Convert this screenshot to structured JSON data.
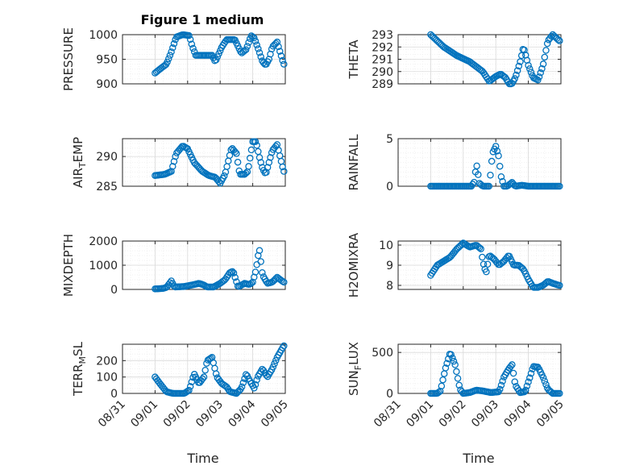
{
  "figure": {
    "title": "Figure 1 medium"
  },
  "colors": {
    "marker": "#0072BD",
    "axis": "#262626",
    "grid": "#e0e0e0"
  },
  "xaxis": {
    "label": "Time",
    "ticks": [
      "08/31",
      "09/01",
      "09/02",
      "09/03",
      "09/04",
      "09/05"
    ],
    "tick_values": [
      0,
      1,
      2,
      3,
      4,
      5
    ],
    "range": [
      0,
      5
    ],
    "data_range": [
      1.0,
      4.96
    ]
  },
  "chart_data": [
    {
      "type": "scatter",
      "ylabel": "PRESSURE",
      "ylim": [
        900,
        1000
      ],
      "yticks": [
        900,
        950,
        1000
      ],
      "knots": [
        [
          1.0,
          922
        ],
        [
          1.15,
          930
        ],
        [
          1.35,
          940
        ],
        [
          1.5,
          965
        ],
        [
          1.65,
          995
        ],
        [
          1.85,
          1000
        ],
        [
          2.05,
          998
        ],
        [
          2.15,
          975
        ],
        [
          2.25,
          958
        ],
        [
          2.5,
          958
        ],
        [
          2.75,
          958
        ],
        [
          2.85,
          945
        ],
        [
          3.05,
          975
        ],
        [
          3.2,
          990
        ],
        [
          3.45,
          990
        ],
        [
          3.65,
          962
        ],
        [
          3.8,
          970
        ],
        [
          3.95,
          998
        ],
        [
          4.05,
          993
        ],
        [
          4.2,
          965
        ],
        [
          4.3,
          945
        ],
        [
          4.4,
          938
        ],
        [
          4.5,
          950
        ],
        [
          4.6,
          975
        ],
        [
          4.75,
          985
        ],
        [
          4.95,
          940
        ]
      ]
    },
    {
      "type": "scatter",
      "ylabel": "THETA",
      "ylim": [
        289,
        293
      ],
      "yticks": [
        289,
        290,
        291,
        292,
        293
      ],
      "knots": [
        [
          1.0,
          293.0
        ],
        [
          1.4,
          292.0
        ],
        [
          1.8,
          291.3
        ],
        [
          2.2,
          290.8
        ],
        [
          2.6,
          290.0
        ],
        [
          2.8,
          289.2
        ],
        [
          3.0,
          289.6
        ],
        [
          3.15,
          289.8
        ],
        [
          3.3,
          289.5
        ],
        [
          3.45,
          288.8
        ],
        [
          3.6,
          289.5
        ],
        [
          3.75,
          290.8
        ],
        [
          3.85,
          292.0
        ],
        [
          4.0,
          290.5
        ],
        [
          4.15,
          289.5
        ],
        [
          4.3,
          289.3
        ],
        [
          4.45,
          290.5
        ],
        [
          4.6,
          292.5
        ],
        [
          4.75,
          293.0
        ],
        [
          4.95,
          292.5
        ]
      ]
    },
    {
      "type": "scatter",
      "ylabel": "AIR_TEMP",
      "ylabel_main": "AIR",
      "ylabel_sub": "T",
      "ylabel_rest": "EMP",
      "ylim": [
        285,
        293
      ],
      "yticks": [
        285,
        290
      ],
      "knots": [
        [
          1.0,
          286.8
        ],
        [
          1.3,
          287.0
        ],
        [
          1.5,
          287.5
        ],
        [
          1.65,
          290.5
        ],
        [
          1.85,
          291.8
        ],
        [
          2.0,
          291.3
        ],
        [
          2.2,
          289.0
        ],
        [
          2.45,
          287.5
        ],
        [
          2.65,
          286.8
        ],
        [
          2.85,
          286.5
        ],
        [
          3.0,
          285.5
        ],
        [
          3.15,
          287.0
        ],
        [
          3.35,
          291.5
        ],
        [
          3.5,
          290.5
        ],
        [
          3.6,
          287.0
        ],
        [
          3.75,
          287.0
        ],
        [
          3.85,
          287.5
        ],
        [
          4.0,
          292.5
        ],
        [
          4.1,
          292.5
        ],
        [
          4.2,
          290.0
        ],
        [
          4.3,
          288.0
        ],
        [
          4.4,
          287.0
        ],
        [
          4.5,
          289.0
        ],
        [
          4.6,
          291.0
        ],
        [
          4.75,
          292.0
        ],
        [
          4.95,
          287.5
        ]
      ]
    },
    {
      "type": "scatter",
      "ylabel": "RAINFALL",
      "ylim": [
        0,
        5
      ],
      "yticks": [
        0,
        5
      ],
      "knots": [
        [
          1.0,
          0
        ],
        [
          2.25,
          0
        ],
        [
          2.35,
          0.5
        ],
        [
          2.4,
          2.5
        ],
        [
          2.5,
          0.3
        ],
        [
          2.6,
          0
        ],
        [
          2.8,
          0
        ],
        [
          2.9,
          3.5
        ],
        [
          3.0,
          4.2
        ],
        [
          3.1,
          3.0
        ],
        [
          3.15,
          1.2
        ],
        [
          3.25,
          0
        ],
        [
          3.35,
          0
        ],
        [
          3.5,
          0.4
        ],
        [
          3.6,
          0
        ],
        [
          3.8,
          0.1
        ],
        [
          4.0,
          0
        ],
        [
          4.96,
          0
        ]
      ]
    },
    {
      "type": "scatter",
      "ylabel": "MIXDEPTH",
      "ylim": [
        0,
        2000
      ],
      "yticks": [
        0,
        1000,
        2000
      ],
      "knots": [
        [
          1.0,
          20
        ],
        [
          1.25,
          40
        ],
        [
          1.35,
          80
        ],
        [
          1.5,
          350
        ],
        [
          1.6,
          100
        ],
        [
          1.9,
          120
        ],
        [
          2.2,
          200
        ],
        [
          2.35,
          250
        ],
        [
          2.5,
          180
        ],
        [
          2.6,
          100
        ],
        [
          2.8,
          100
        ],
        [
          3.0,
          250
        ],
        [
          3.15,
          400
        ],
        [
          3.3,
          700
        ],
        [
          3.4,
          750
        ],
        [
          3.55,
          100
        ],
        [
          3.75,
          250
        ],
        [
          3.9,
          200
        ],
        [
          4.0,
          300
        ],
        [
          4.1,
          800
        ],
        [
          4.2,
          1700
        ],
        [
          4.3,
          600
        ],
        [
          4.45,
          250
        ],
        [
          4.6,
          300
        ],
        [
          4.75,
          500
        ],
        [
          4.95,
          300
        ]
      ]
    },
    {
      "type": "scatter",
      "ylabel": "H2OMIXRA",
      "ylim": [
        7.8,
        10.2
      ],
      "yticks": [
        8,
        9,
        10
      ],
      "knots": [
        [
          1.0,
          8.5
        ],
        [
          1.2,
          9.0
        ],
        [
          1.4,
          9.2
        ],
        [
          1.6,
          9.4
        ],
        [
          1.8,
          9.8
        ],
        [
          2.0,
          10.1
        ],
        [
          2.2,
          9.9
        ],
        [
          2.4,
          10.0
        ],
        [
          2.55,
          9.8
        ],
        [
          2.6,
          9.2
        ],
        [
          2.7,
          8.6
        ],
        [
          2.8,
          9.5
        ],
        [
          2.95,
          9.3
        ],
        [
          3.1,
          9.0
        ],
        [
          3.25,
          9.2
        ],
        [
          3.4,
          9.5
        ],
        [
          3.55,
          9.0
        ],
        [
          3.7,
          9.0
        ],
        [
          3.85,
          8.8
        ],
        [
          4.0,
          8.3
        ],
        [
          4.15,
          7.9
        ],
        [
          4.3,
          7.9
        ],
        [
          4.45,
          8.0
        ],
        [
          4.6,
          8.2
        ],
        [
          4.75,
          8.1
        ],
        [
          4.95,
          8.0
        ]
      ]
    },
    {
      "type": "scatter",
      "ylabel": "TERR_MSL",
      "ylabel_main": "TERR",
      "ylabel_sub": "M",
      "ylabel_rest": "SL",
      "ylim": [
        0,
        300
      ],
      "yticks": [
        0,
        100,
        200
      ],
      "knots": [
        [
          1.0,
          100
        ],
        [
          1.15,
          60
        ],
        [
          1.35,
          10
        ],
        [
          1.55,
          0
        ],
        [
          1.9,
          0
        ],
        [
          2.05,
          20
        ],
        [
          2.2,
          120
        ],
        [
          2.35,
          60
        ],
        [
          2.5,
          100
        ],
        [
          2.6,
          200
        ],
        [
          2.75,
          220
        ],
        [
          2.9,
          100
        ],
        [
          3.05,
          60
        ],
        [
          3.2,
          40
        ],
        [
          3.3,
          10
        ],
        [
          3.5,
          0
        ],
        [
          3.65,
          30
        ],
        [
          3.8,
          120
        ],
        [
          3.9,
          80
        ],
        [
          4.05,
          30
        ],
        [
          4.15,
          100
        ],
        [
          4.3,
          150
        ],
        [
          4.45,
          100
        ],
        [
          4.6,
          150
        ],
        [
          4.75,
          220
        ],
        [
          4.95,
          290
        ]
      ]
    },
    {
      "type": "scatter",
      "ylabel": "SUN_FLUX",
      "ylabel_main": "SUN",
      "ylabel_sub": "F",
      "ylabel_rest": "LUX",
      "ylim": [
        0,
        600
      ],
      "yticks": [
        0,
        500
      ],
      "knots": [
        [
          1.0,
          0
        ],
        [
          1.2,
          0
        ],
        [
          1.3,
          30
        ],
        [
          1.45,
          300
        ],
        [
          1.6,
          500
        ],
        [
          1.75,
          350
        ],
        [
          1.9,
          50
        ],
        [
          2.0,
          0
        ],
        [
          2.2,
          10
        ],
        [
          2.4,
          40
        ],
        [
          2.6,
          30
        ],
        [
          2.85,
          10
        ],
        [
          3.1,
          20
        ],
        [
          3.25,
          200
        ],
        [
          3.4,
          300
        ],
        [
          3.5,
          350
        ],
        [
          3.6,
          100
        ],
        [
          3.75,
          10
        ],
        [
          3.9,
          20
        ],
        [
          4.05,
          200
        ],
        [
          4.15,
          330
        ],
        [
          4.3,
          320
        ],
        [
          4.45,
          200
        ],
        [
          4.6,
          50
        ],
        [
          4.75,
          0
        ],
        [
          4.95,
          0
        ]
      ]
    }
  ]
}
